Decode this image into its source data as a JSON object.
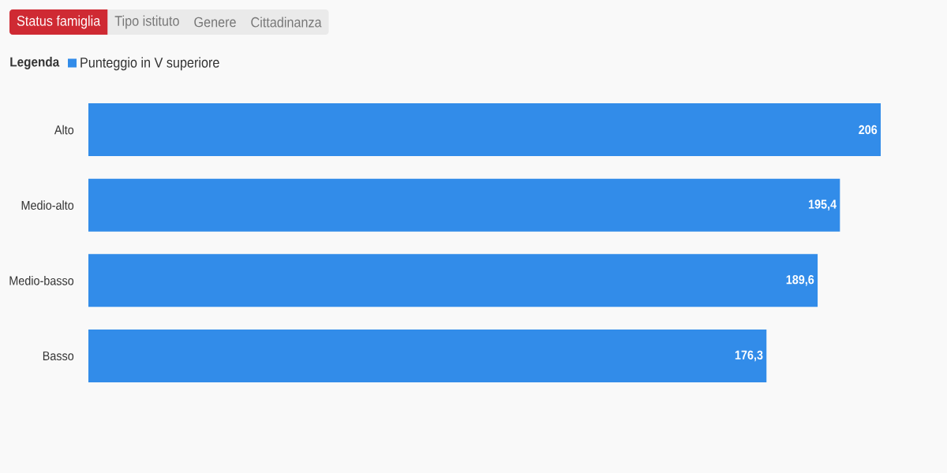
{
  "chart_data": {
    "type": "bar",
    "orientation": "horizontal",
    "title": "Status famiglia",
    "annotations": [
      "Tipo istituto",
      "Genere",
      "Cittadinanza"
    ],
    "legend_title": "Legenda",
    "legend": "top left",
    "categories": [
      "Alto",
      "Medio-alto",
      "Medio-basso",
      "Basso"
    ],
    "series": [
      {
        "name": "Punteggio in V superiore",
        "color": "#328ce9",
        "values": [
          206,
          195.4,
          189.6,
          176.3
        ],
        "value_labels": [
          "206",
          "195,4",
          "189,6",
          "176,3"
        ]
      }
    ],
    "xlim": [
      0,
      206
    ],
    "tick_labels": "y"
  }
}
